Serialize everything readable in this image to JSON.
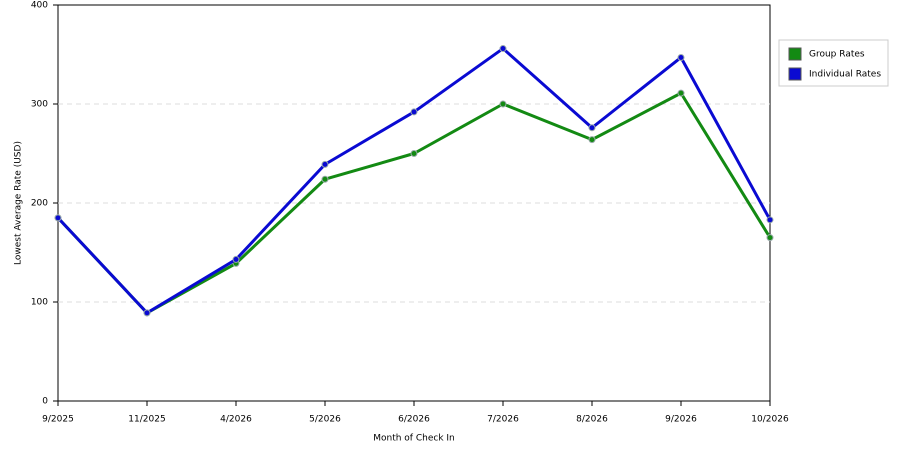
{
  "chart_data": {
    "type": "line",
    "x_label": "Month of Check In",
    "y_label": "Lowest Average Rate (USD)",
    "categories": [
      "9/2025",
      "11/2025",
      "4/2026",
      "5/2026",
      "6/2026",
      "7/2026",
      "8/2026",
      "9/2026",
      "10/2026"
    ],
    "series": [
      {
        "name": "Group Rates",
        "color": "#138a13",
        "values": [
          185,
          89,
          139,
          224,
          250,
          300,
          264,
          311,
          165
        ]
      },
      {
        "name": "Individual Rates",
        "color": "#0a0ad2",
        "values": [
          185,
          89,
          143,
          239,
          292,
          356,
          276,
          347,
          183
        ]
      }
    ],
    "ylim": [
      0,
      400
    ],
    "yticks": [
      0,
      100,
      200,
      300,
      400
    ],
    "grid": true,
    "legend": "right"
  }
}
